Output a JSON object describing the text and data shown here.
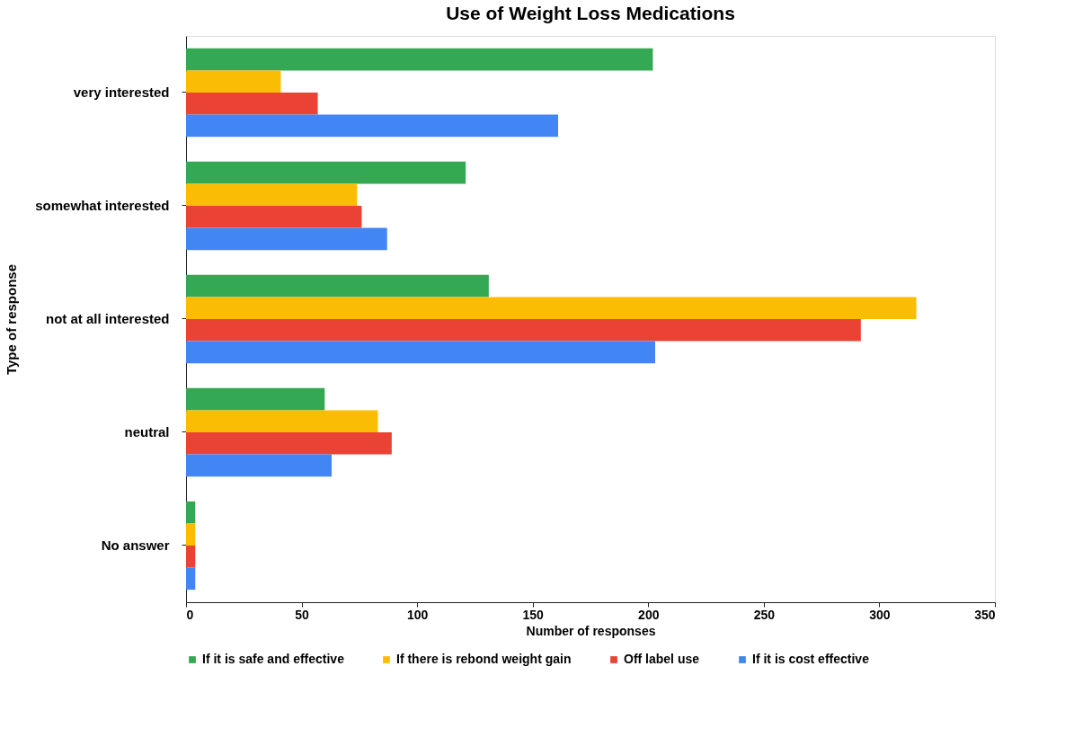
{
  "chart_data": {
    "type": "bar",
    "orientation": "horizontal",
    "title": "Use of Weight Loss Medications",
    "xlabel": "Number of responses",
    "ylabel": "Type of response",
    "categories": [
      "very interested",
      "somewhat interested",
      "not at all interested",
      "neutral",
      "No answer"
    ],
    "series": [
      {
        "name": "If it is safe and effective",
        "color": "#34a853",
        "values": [
          202,
          121,
          131,
          60,
          4
        ]
      },
      {
        "name": "If there is rebond weight gain",
        "color": "#fbbc04",
        "values": [
          41,
          74,
          316,
          83,
          4
        ]
      },
      {
        "name": "Off label use",
        "color": "#ea4335",
        "values": [
          57,
          76,
          292,
          89,
          4
        ]
      },
      {
        "name": "If it is cost effective",
        "color": "#4285f4",
        "values": [
          161,
          87,
          203,
          63,
          4
        ]
      }
    ],
    "xlim": [
      0,
      350
    ],
    "xticks": [
      0,
      50,
      100,
      150,
      200,
      250,
      300,
      350
    ],
    "grid": false,
    "legend": "bottom"
  }
}
